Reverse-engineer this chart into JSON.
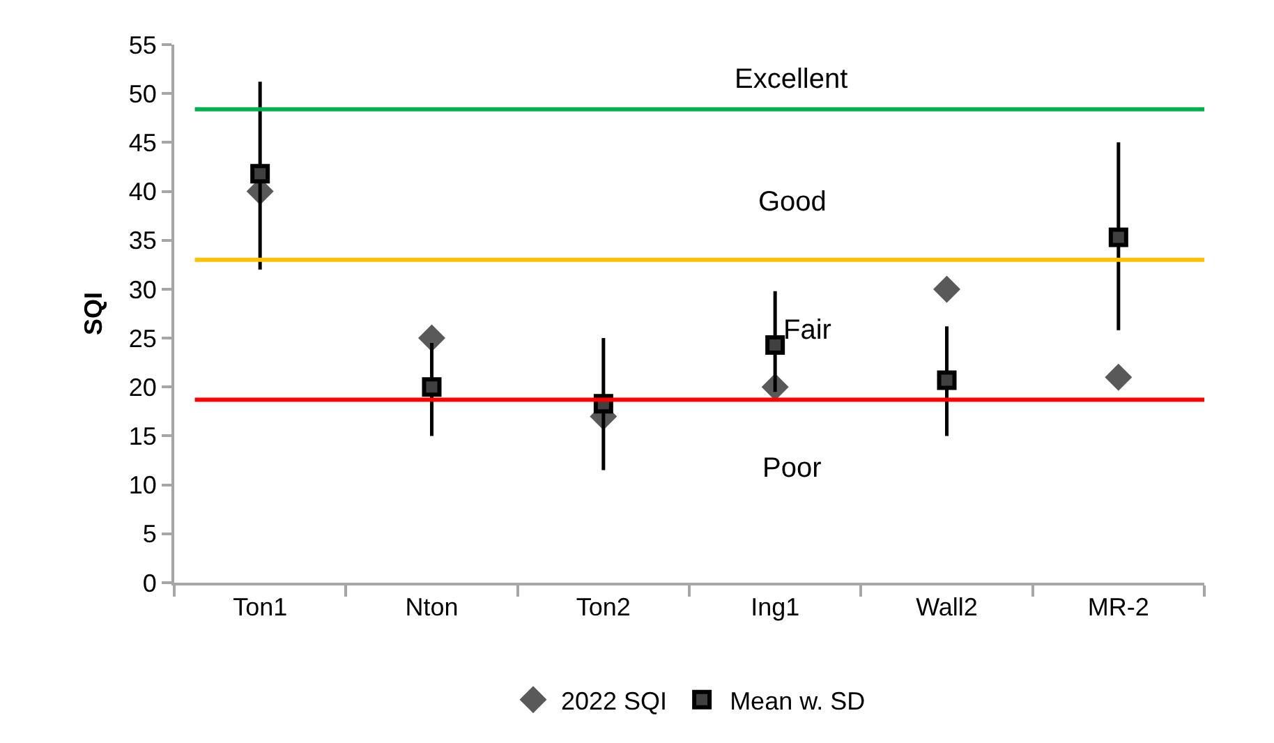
{
  "chart_data": {
    "type": "scatter",
    "ylabel": "SQI",
    "categories": [
      "Ton1",
      "Nton",
      "Ton2",
      "Ing1",
      "Wall2",
      "MR-2"
    ],
    "series": [
      {
        "name": "2022 SQI",
        "color": "#595959",
        "marker": "diamond",
        "values": [
          40,
          25,
          17,
          20,
          30,
          21
        ]
      },
      {
        "name": "Mean w. SD",
        "color": "#404040",
        "marker": "square",
        "values": [
          41.8,
          20,
          18.3,
          24.3,
          20.7,
          35.3
        ],
        "errors": [
          [
            32,
            51.2
          ],
          [
            15,
            24.5
          ],
          [
            11.5,
            25
          ],
          [
            19.5,
            29.8
          ],
          [
            15,
            26.2
          ],
          [
            25.8,
            45
          ]
        ]
      }
    ],
    "ylim": [
      0,
      55
    ],
    "yticks": [
      0,
      5,
      10,
      15,
      20,
      25,
      30,
      35,
      40,
      45,
      50,
      55
    ],
    "ref_lines": [
      {
        "axis": "y",
        "value": 48.4,
        "color": "#00b050"
      },
      {
        "axis": "y",
        "value": 33,
        "color": "#ffc000"
      },
      {
        "axis": "y",
        "value": 18.7,
        "color": "#ff0000"
      }
    ],
    "annotations": [
      "Excellent",
      "Good",
      "Fair",
      "Poor"
    ],
    "grid": false,
    "legend": "bottom"
  }
}
